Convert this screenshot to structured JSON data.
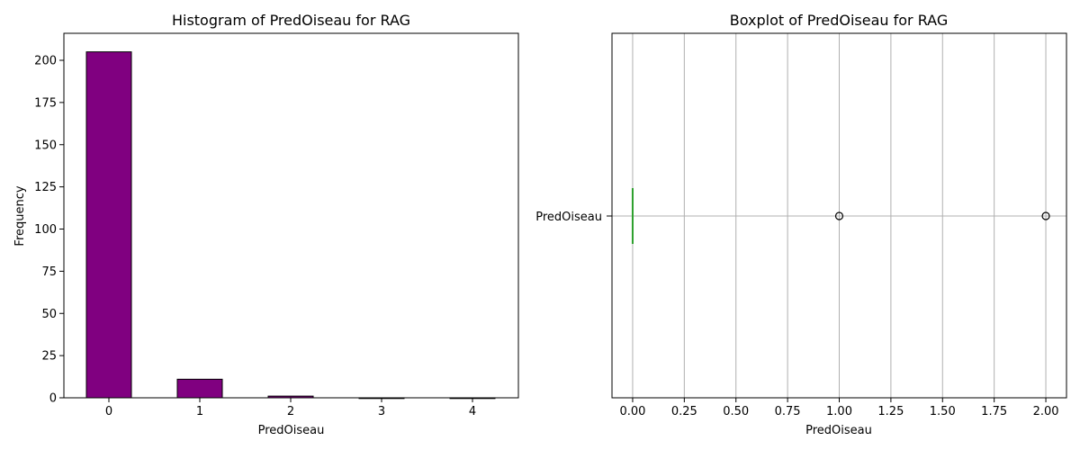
{
  "chart_data": [
    {
      "type": "bar",
      "title": "Histogram of PredOiseau for RAG",
      "xlabel": "PredOiseau",
      "ylabel": "Frequency",
      "categories": [
        "0",
        "1",
        "2",
        "3",
        "4"
      ],
      "values": [
        205,
        11,
        1,
        0,
        0
      ],
      "ylim": [
        0,
        216
      ],
      "yticks": [
        0,
        25,
        50,
        75,
        100,
        125,
        150,
        175,
        200
      ],
      "bar_color": "#800080",
      "edge_color": "#000000",
      "grid": false
    },
    {
      "type": "boxplot",
      "title": "Boxplot of PredOiseau for RAG",
      "xlabel": "PredOiseau",
      "category": "PredOiseau",
      "orientation": "horizontal",
      "xlim": [
        -0.1,
        2.1
      ],
      "xticks": [
        "0.00",
        "0.25",
        "0.50",
        "0.75",
        "1.00",
        "1.25",
        "1.50",
        "1.75",
        "2.00"
      ],
      "q1": 0,
      "median": 0,
      "q3": 0,
      "whisker_low": 0,
      "whisker_high": 0,
      "outliers": [
        1,
        2
      ],
      "median_color": "#2ca02c",
      "grid": true
    }
  ]
}
